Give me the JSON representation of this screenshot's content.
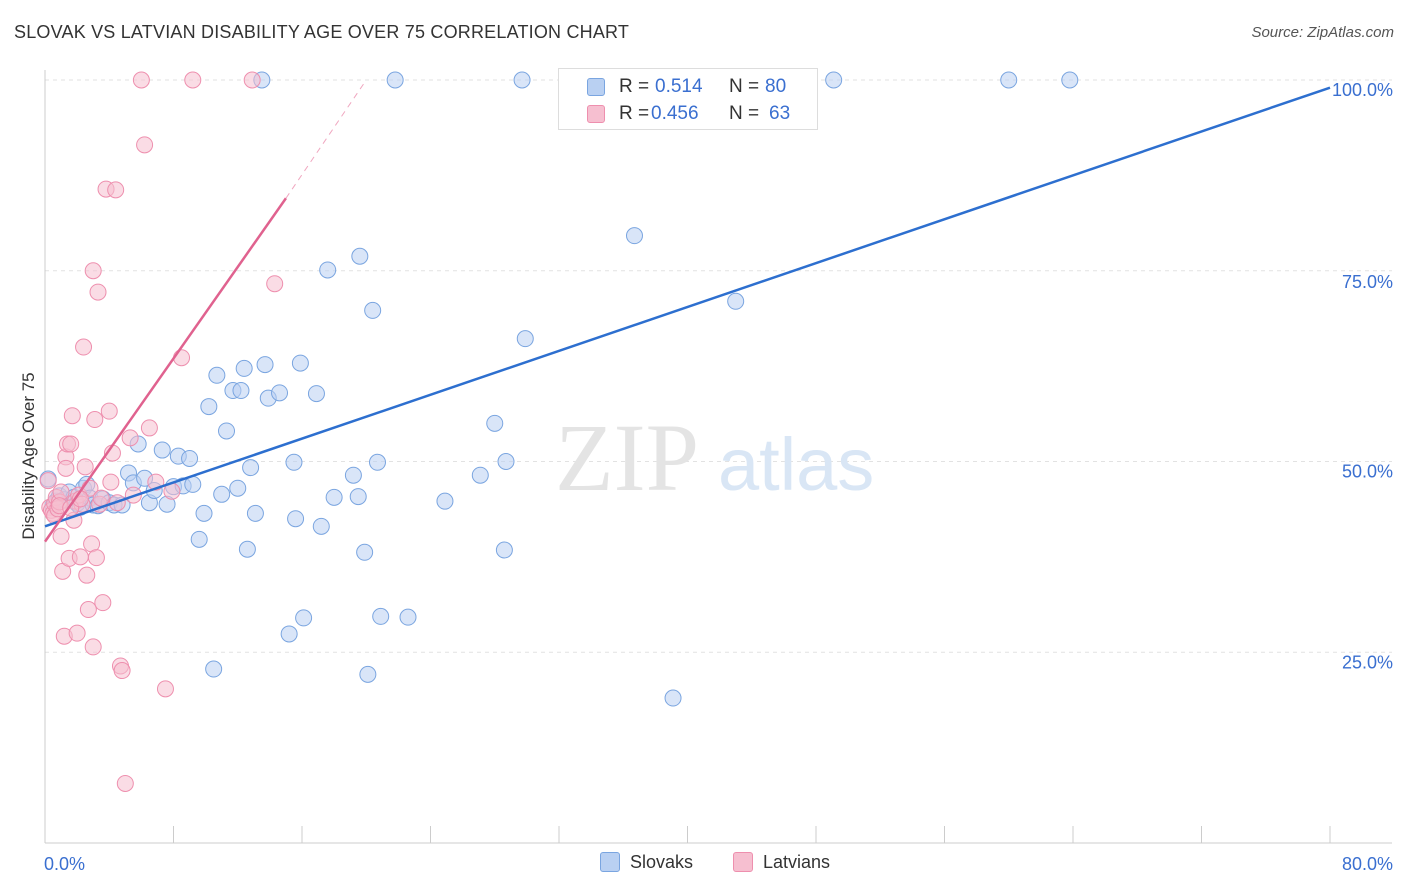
{
  "title": "SLOVAK VS LATVIAN DISABILITY AGE OVER 75 CORRELATION CHART",
  "source": "Source: ZipAtlas.com",
  "watermark": {
    "zip": "ZIP",
    "atlas": "atlas"
  },
  "legend_box": {
    "r_label": "R =",
    "n_label": "N =",
    "rows": [
      {
        "r": "0.514",
        "n": "80"
      },
      {
        "r": "0.456",
        "n": "63"
      }
    ]
  },
  "colors": {
    "slovaks_fill": "#b9d0f2",
    "slovaks_stroke": "#7aa5e0",
    "slovaks_line": "#2d6fcf",
    "latvians_fill": "#f6bfd0",
    "latvians_stroke": "#ee8fae",
    "latvians_line": "#e0628f",
    "axis_label": "#3a6fd0"
  },
  "chart_data": {
    "type": "scatter",
    "title": "SLOVAK VS LATVIAN DISABILITY AGE OVER 75 CORRELATION CHART",
    "xlabel": "",
    "ylabel": "Disability Age Over 75",
    "xlim": [
      0,
      80
    ],
    "ylim": [
      0,
      100
    ],
    "x_tick_labels": [
      "0.0%",
      "80.0%"
    ],
    "y_ticks": [
      {
        "value": 25,
        "label": "25.0%"
      },
      {
        "value": 50,
        "label": "50.0%"
      },
      {
        "value": 75,
        "label": "75.0%"
      },
      {
        "value": 100,
        "label": "100.0%"
      }
    ],
    "grid": true,
    "legend": [
      "Slovaks",
      "Latvians"
    ],
    "series": [
      {
        "name": "Slovaks",
        "r": 0.514,
        "n": 80,
        "trend": {
          "x0": 0,
          "y0": 41.5,
          "x1": 80,
          "y1": 99.0
        },
        "points": [
          [
            0.2,
            47.7
          ],
          [
            0.5,
            44.2
          ],
          [
            0.7,
            44.8
          ],
          [
            0.9,
            45.5
          ],
          [
            1.2,
            45.0
          ],
          [
            1.5,
            46.0
          ],
          [
            1.8,
            45.3
          ],
          [
            2.0,
            44.5
          ],
          [
            2.2,
            44.0
          ],
          [
            2.4,
            46.5
          ],
          [
            2.6,
            47.0
          ],
          [
            2.8,
            45.2
          ],
          [
            3.0,
            44.3
          ],
          [
            3.3,
            44.2
          ],
          [
            3.6,
            45.1
          ],
          [
            4.0,
            44.6
          ],
          [
            4.3,
            44.3
          ],
          [
            4.8,
            44.3
          ],
          [
            5.2,
            48.5
          ],
          [
            5.5,
            47.2
          ],
          [
            5.8,
            52.3
          ],
          [
            6.2,
            47.8
          ],
          [
            6.5,
            44.6
          ],
          [
            6.8,
            46.2
          ],
          [
            7.3,
            51.5
          ],
          [
            7.6,
            44.4
          ],
          [
            8.0,
            46.7
          ],
          [
            8.3,
            50.7
          ],
          [
            8.6,
            46.8
          ],
          [
            9.0,
            50.4
          ],
          [
            9.2,
            47.0
          ],
          [
            9.6,
            39.8
          ],
          [
            9.9,
            43.2
          ],
          [
            10.2,
            57.2
          ],
          [
            10.5,
            22.8
          ],
          [
            10.7,
            61.3
          ],
          [
            11.0,
            45.7
          ],
          [
            11.3,
            54.0
          ],
          [
            11.7,
            59.3
          ],
          [
            12.0,
            46.5
          ],
          [
            12.2,
            59.3
          ],
          [
            12.4,
            62.2
          ],
          [
            12.6,
            38.5
          ],
          [
            12.8,
            49.2
          ],
          [
            13.1,
            43.2
          ],
          [
            13.5,
            100.0
          ],
          [
            13.7,
            62.7
          ],
          [
            13.9,
            58.3
          ],
          [
            14.6,
            59.0
          ],
          [
            15.2,
            27.4
          ],
          [
            15.5,
            49.9
          ],
          [
            15.6,
            42.5
          ],
          [
            15.9,
            62.9
          ],
          [
            16.1,
            29.5
          ],
          [
            16.9,
            58.9
          ],
          [
            17.2,
            41.5
          ],
          [
            17.6,
            75.1
          ],
          [
            18.0,
            45.3
          ],
          [
            19.2,
            48.2
          ],
          [
            19.5,
            45.4
          ],
          [
            19.6,
            76.9
          ],
          [
            19.9,
            38.1
          ],
          [
            20.1,
            22.1
          ],
          [
            20.4,
            69.8
          ],
          [
            21.8,
            100.0
          ],
          [
            20.9,
            29.7
          ],
          [
            22.6,
            29.6
          ],
          [
            24.9,
            44.8
          ],
          [
            27.1,
            48.2
          ],
          [
            28.0,
            55.0
          ],
          [
            28.6,
            38.4
          ],
          [
            28.7,
            50.0
          ],
          [
            29.7,
            100.0
          ],
          [
            29.9,
            66.1
          ],
          [
            36.7,
            79.6
          ],
          [
            39.1,
            19.0
          ],
          [
            43.0,
            71.0
          ],
          [
            49.1,
            100.0
          ],
          [
            60.0,
            100.0
          ],
          [
            63.8,
            100.0
          ],
          [
            20.7,
            49.9
          ]
        ]
      },
      {
        "name": "Latvians",
        "r": 0.456,
        "n": 63,
        "trend": {
          "x0": 0,
          "y0": 39.5,
          "x1": 15.0,
          "y1": 84.5
        },
        "trend_extension": {
          "x0": 15.0,
          "y0": 84.5,
          "x1": 20.0,
          "y1": 100.0
        },
        "points": [
          [
            0.2,
            47.5
          ],
          [
            0.3,
            44.0
          ],
          [
            0.4,
            43.6
          ],
          [
            0.5,
            43.2
          ],
          [
            0.6,
            44.5
          ],
          [
            0.6,
            42.9
          ],
          [
            0.7,
            45.3
          ],
          [
            0.8,
            43.8
          ],
          [
            0.9,
            44.7
          ],
          [
            1.0,
            46.0
          ],
          [
            1.0,
            40.2
          ],
          [
            1.1,
            35.6
          ],
          [
            1.2,
            27.1
          ],
          [
            1.3,
            50.6
          ],
          [
            1.3,
            49.1
          ],
          [
            1.4,
            52.3
          ],
          [
            1.5,
            37.3
          ],
          [
            1.6,
            52.3
          ],
          [
            1.7,
            56.0
          ],
          [
            1.8,
            42.3
          ],
          [
            1.9,
            44.8
          ],
          [
            2.0,
            27.5
          ],
          [
            2.1,
            45.6
          ],
          [
            2.2,
            37.5
          ],
          [
            2.3,
            44.4
          ],
          [
            2.4,
            65.0
          ],
          [
            2.5,
            49.3
          ],
          [
            2.6,
            35.1
          ],
          [
            2.7,
            30.6
          ],
          [
            2.8,
            46.5
          ],
          [
            2.9,
            39.2
          ],
          [
            3.0,
            25.7
          ],
          [
            3.0,
            75.0
          ],
          [
            3.1,
            55.5
          ],
          [
            3.2,
            37.4
          ],
          [
            3.3,
            72.2
          ],
          [
            3.4,
            44.4
          ],
          [
            3.5,
            45.2
          ],
          [
            3.6,
            31.5
          ],
          [
            3.8,
            85.7
          ],
          [
            4.0,
            56.6
          ],
          [
            4.1,
            47.3
          ],
          [
            4.2,
            51.1
          ],
          [
            4.4,
            85.6
          ],
          [
            4.5,
            44.6
          ],
          [
            4.7,
            23.2
          ],
          [
            4.8,
            22.6
          ],
          [
            5.0,
            7.8
          ],
          [
            5.3,
            53.1
          ],
          [
            5.5,
            45.6
          ],
          [
            6.0,
            100.0
          ],
          [
            6.2,
            91.5
          ],
          [
            6.5,
            54.4
          ],
          [
            6.9,
            47.3
          ],
          [
            7.5,
            20.2
          ],
          [
            7.9,
            46.1
          ],
          [
            8.5,
            63.6
          ],
          [
            9.2,
            100.0
          ],
          [
            12.9,
            100.0
          ],
          [
            14.3,
            73.3
          ],
          [
            0.9,
            44.2
          ],
          [
            1.6,
            43.9
          ],
          [
            2.2,
            45.1
          ]
        ]
      }
    ]
  }
}
